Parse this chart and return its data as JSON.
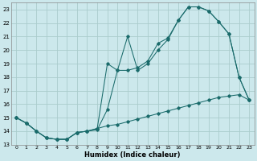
{
  "xlabel": "Humidex (Indice chaleur)",
  "bg_color": "#cce8ec",
  "grid_color": "#aacccc",
  "line_color": "#1a6b6b",
  "xlim": [
    -0.5,
    23.5
  ],
  "ylim": [
    13,
    23.5
  ],
  "yticks": [
    13,
    14,
    15,
    16,
    17,
    18,
    19,
    20,
    21,
    22,
    23
  ],
  "xticks": [
    0,
    1,
    2,
    3,
    4,
    5,
    6,
    7,
    8,
    9,
    10,
    11,
    12,
    13,
    14,
    15,
    16,
    17,
    18,
    19,
    20,
    21,
    22,
    23
  ],
  "line1_x": [
    0,
    1,
    2,
    3,
    4,
    5,
    6,
    7,
    8,
    9,
    10,
    11,
    12,
    13,
    14,
    15,
    16,
    17,
    18,
    19,
    20,
    21,
    22,
    23
  ],
  "line1_y": [
    15.0,
    14.6,
    14.0,
    13.5,
    13.4,
    13.4,
    13.9,
    14.0,
    14.1,
    15.6,
    18.5,
    21.0,
    18.5,
    19.0,
    20.0,
    20.8,
    22.2,
    23.2,
    23.2,
    22.9,
    22.1,
    21.2,
    18.0,
    16.3
  ],
  "line2_x": [
    0,
    1,
    2,
    3,
    4,
    5,
    6,
    7,
    8,
    9,
    10,
    11,
    12,
    13,
    14,
    15,
    16,
    17,
    18,
    19,
    20,
    21,
    22,
    23
  ],
  "line2_y": [
    15.0,
    14.6,
    14.0,
    13.5,
    13.4,
    13.4,
    13.9,
    14.0,
    14.2,
    19.0,
    18.5,
    18.5,
    18.7,
    19.2,
    20.5,
    20.9,
    22.2,
    23.2,
    23.2,
    22.9,
    22.1,
    21.2,
    18.0,
    16.3
  ],
  "line3_x": [
    0,
    1,
    2,
    3,
    4,
    5,
    6,
    7,
    8,
    9,
    10,
    11,
    12,
    13,
    14,
    15,
    16,
    17,
    18,
    19,
    20,
    21,
    22,
    23
  ],
  "line3_y": [
    15.0,
    14.6,
    14.0,
    13.5,
    13.4,
    13.4,
    13.9,
    14.0,
    14.2,
    14.4,
    14.5,
    14.7,
    14.9,
    15.1,
    15.3,
    15.5,
    15.7,
    15.9,
    16.1,
    16.3,
    16.5,
    16.6,
    16.7,
    16.3
  ]
}
